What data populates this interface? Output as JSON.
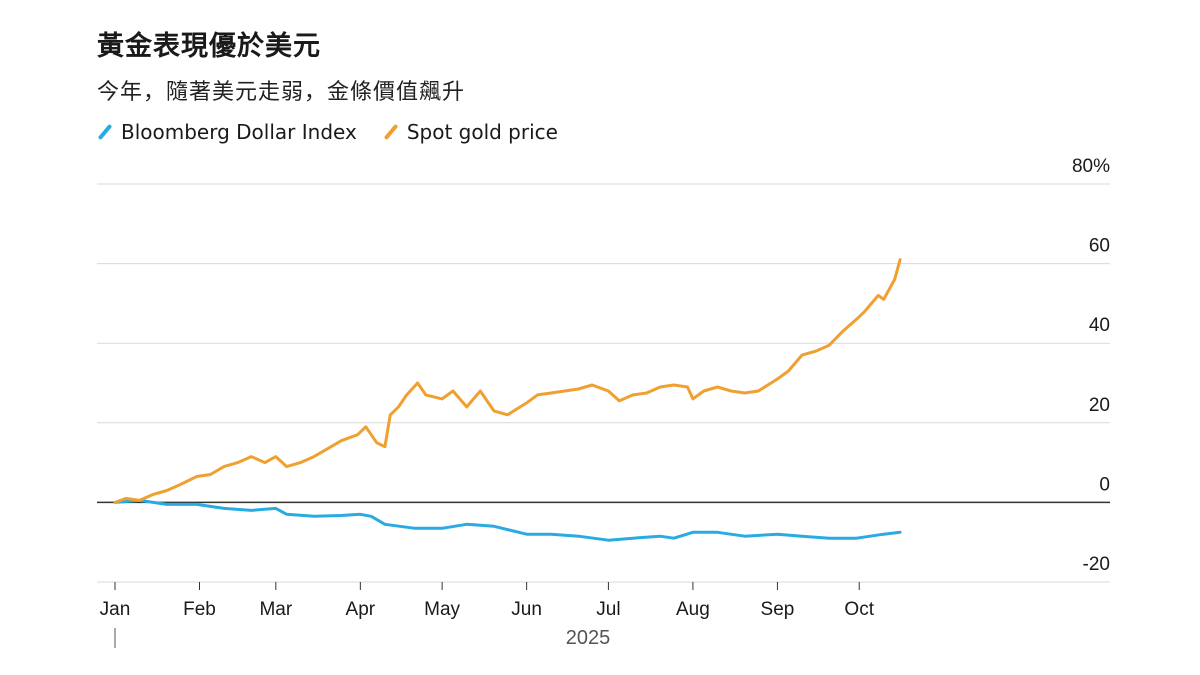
{
  "header": {
    "title": "黃金表現優於美元",
    "subtitle": "今年，隨著美元走弱，金條價值飆升"
  },
  "legend": [
    {
      "label": "Bloomberg Dollar Index",
      "color": "#29abe2"
    },
    {
      "label": "Spot gold price",
      "color": "#f0a030"
    }
  ],
  "chart_data": {
    "type": "line",
    "x_axis": {
      "ticks": [
        "Jan",
        "Feb",
        "Mar",
        "Apr",
        "May",
        "Jun",
        "Jul",
        "Aug",
        "Sep",
        "Oct"
      ],
      "year_label": "2025"
    },
    "y_axis": {
      "ticks": [
        -20,
        0,
        20,
        40,
        60,
        80
      ],
      "tick_labels": [
        "-20",
        "0",
        "20",
        "40",
        "60",
        "80%"
      ],
      "range": [
        -20,
        80
      ],
      "unit": "%",
      "position": "right"
    },
    "grid": true,
    "legend_position": "top-left",
    "series": [
      {
        "name": "Bloomberg Dollar Index",
        "color": "#29abe2",
        "points": [
          [
            "2025-01-01",
            0
          ],
          [
            "2025-01-10",
            0.5
          ],
          [
            "2025-01-20",
            -0.5
          ],
          [
            "2025-01-31",
            -0.5
          ],
          [
            "2025-02-10",
            -1.5
          ],
          [
            "2025-02-20",
            -2
          ],
          [
            "2025-03-01",
            -1.5
          ],
          [
            "2025-03-05",
            -3
          ],
          [
            "2025-03-15",
            -3.5
          ],
          [
            "2025-03-25",
            -3.3
          ],
          [
            "2025-04-01",
            -3
          ],
          [
            "2025-04-05",
            -3.5
          ],
          [
            "2025-04-10",
            -5.5
          ],
          [
            "2025-04-21",
            -6.5
          ],
          [
            "2025-05-01",
            -6.5
          ],
          [
            "2025-05-10",
            -5.5
          ],
          [
            "2025-05-20",
            -6
          ],
          [
            "2025-06-01",
            -8
          ],
          [
            "2025-06-10",
            -8
          ],
          [
            "2025-06-20",
            -8.5
          ],
          [
            "2025-07-01",
            -9.5
          ],
          [
            "2025-07-10",
            -9
          ],
          [
            "2025-07-20",
            -8.5
          ],
          [
            "2025-07-25",
            -9
          ],
          [
            "2025-08-01",
            -7.5
          ],
          [
            "2025-08-10",
            -7.5
          ],
          [
            "2025-08-20",
            -8.5
          ],
          [
            "2025-09-01",
            -8
          ],
          [
            "2025-09-10",
            -8.5
          ],
          [
            "2025-09-20",
            -9
          ],
          [
            "2025-09-30",
            -9
          ],
          [
            "2025-10-10",
            -8
          ],
          [
            "2025-10-16",
            -7.5
          ]
        ]
      },
      {
        "name": "Spot gold price",
        "color": "#f0a030",
        "points": [
          [
            "2025-01-01",
            0
          ],
          [
            "2025-01-05",
            1
          ],
          [
            "2025-01-10",
            0.5
          ],
          [
            "2025-01-15",
            2
          ],
          [
            "2025-01-20",
            3
          ],
          [
            "2025-01-25",
            4.5
          ],
          [
            "2025-01-31",
            6.5
          ],
          [
            "2025-02-05",
            7
          ],
          [
            "2025-02-10",
            9
          ],
          [
            "2025-02-15",
            10
          ],
          [
            "2025-02-20",
            11.5
          ],
          [
            "2025-02-25",
            10
          ],
          [
            "2025-03-01",
            11.5
          ],
          [
            "2025-03-05",
            9
          ],
          [
            "2025-03-10",
            10
          ],
          [
            "2025-03-15",
            11.5
          ],
          [
            "2025-03-20",
            13.5
          ],
          [
            "2025-03-25",
            15.5
          ],
          [
            "2025-03-31",
            17
          ],
          [
            "2025-04-03",
            19
          ],
          [
            "2025-04-07",
            15
          ],
          [
            "2025-04-10",
            14
          ],
          [
            "2025-04-12",
            22
          ],
          [
            "2025-04-15",
            24
          ],
          [
            "2025-04-18",
            27
          ],
          [
            "2025-04-22",
            30
          ],
          [
            "2025-04-25",
            27
          ],
          [
            "2025-05-01",
            26
          ],
          [
            "2025-05-05",
            28
          ],
          [
            "2025-05-10",
            24
          ],
          [
            "2025-05-15",
            28
          ],
          [
            "2025-05-20",
            23
          ],
          [
            "2025-05-25",
            22
          ],
          [
            "2025-06-01",
            25
          ],
          [
            "2025-06-05",
            27
          ],
          [
            "2025-06-10",
            27.5
          ],
          [
            "2025-06-15",
            28
          ],
          [
            "2025-06-20",
            28.5
          ],
          [
            "2025-06-25",
            29.5
          ],
          [
            "2025-07-01",
            28
          ],
          [
            "2025-07-05",
            25.5
          ],
          [
            "2025-07-10",
            27
          ],
          [
            "2025-07-15",
            27.5
          ],
          [
            "2025-07-20",
            29
          ],
          [
            "2025-07-25",
            29.5
          ],
          [
            "2025-07-30",
            29
          ],
          [
            "2025-08-01",
            26
          ],
          [
            "2025-08-05",
            28
          ],
          [
            "2025-08-10",
            29
          ],
          [
            "2025-08-15",
            28
          ],
          [
            "2025-08-20",
            27.5
          ],
          [
            "2025-08-25",
            28
          ],
          [
            "2025-09-01",
            31
          ],
          [
            "2025-09-05",
            33
          ],
          [
            "2025-09-10",
            37
          ],
          [
            "2025-09-15",
            38
          ],
          [
            "2025-09-20",
            39.5
          ],
          [
            "2025-09-25",
            43
          ],
          [
            "2025-09-30",
            46
          ],
          [
            "2025-10-03",
            48
          ],
          [
            "2025-10-08",
            52
          ],
          [
            "2025-10-10",
            51
          ],
          [
            "2025-10-14",
            56
          ],
          [
            "2025-10-16",
            61
          ]
        ]
      }
    ]
  }
}
